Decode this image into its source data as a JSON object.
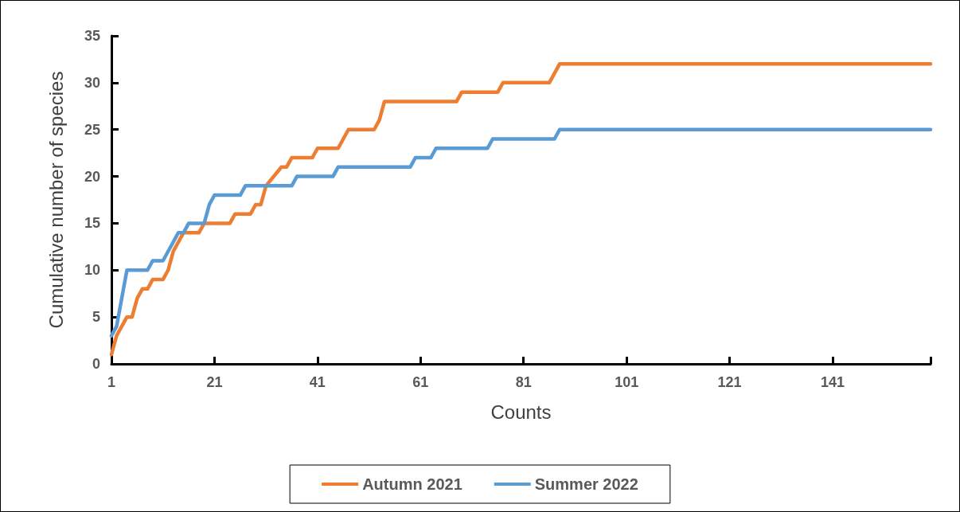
{
  "chart_data": {
    "type": "line",
    "xlabel": "Counts",
    "ylabel": "Cumulative number of species",
    "xlim": [
      1,
      160
    ],
    "xticks": [
      1,
      21,
      41,
      61,
      81,
      101,
      121,
      141,
      {
        "value": 160,
        "label": null
      }
    ],
    "ylim": [
      0,
      35
    ],
    "yticks": [
      0,
      5,
      10,
      15,
      20,
      25,
      30,
      35
    ],
    "grid": false,
    "legend": "bottom",
    "marker": "none",
    "line_style": "solid",
    "series": [
      {
        "name": "Autumn 2021",
        "color": "#ed7d31",
        "x": [
          1,
          2,
          4,
          5,
          6,
          7,
          8,
          9,
          11,
          12,
          13,
          15,
          18,
          19,
          24,
          25,
          28,
          29,
          30,
          31,
          34,
          35,
          36,
          40,
          41,
          45,
          47,
          52,
          53,
          54,
          68,
          69,
          76,
          77,
          86,
          88,
          160
        ],
        "values": [
          1,
          3,
          5,
          5,
          7,
          8,
          8,
          9,
          9,
          10,
          12,
          14,
          14,
          15,
          15,
          16,
          16,
          17,
          17,
          19,
          21,
          21,
          22,
          22,
          23,
          23,
          25,
          25,
          26,
          28,
          28,
          29,
          29,
          30,
          30,
          32,
          32
        ]
      },
      {
        "name": "Summer 2022",
        "color": "#5b9bd5",
        "x": [
          1,
          2,
          4,
          8,
          9,
          11,
          14,
          15,
          16,
          19,
          20,
          21,
          26,
          27,
          36,
          37,
          44,
          45,
          59,
          60,
          63,
          64,
          74,
          75,
          87,
          88,
          160
        ],
        "values": [
          3,
          4,
          10,
          10,
          11,
          11,
          14,
          14,
          15,
          15,
          17,
          18,
          18,
          19,
          19,
          20,
          20,
          21,
          21,
          22,
          22,
          23,
          23,
          24,
          24,
          25,
          25
        ]
      }
    ]
  }
}
